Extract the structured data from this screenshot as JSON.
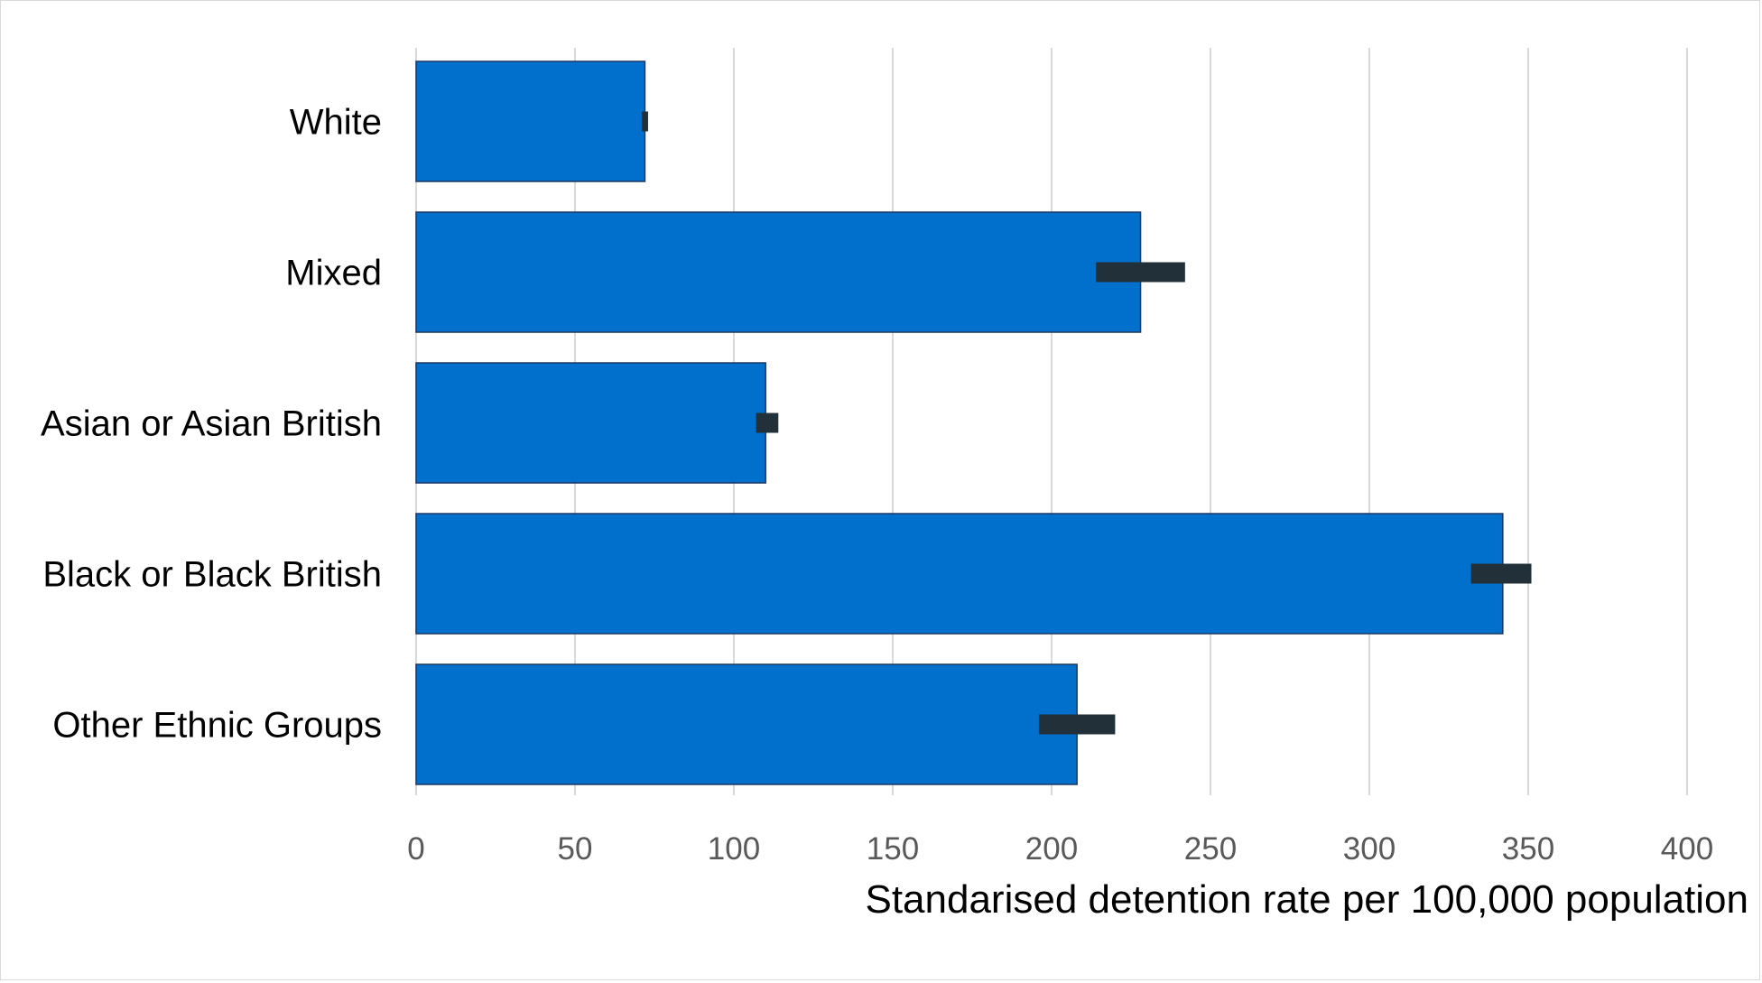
{
  "chart_data": {
    "type": "bar",
    "orientation": "horizontal",
    "title": "",
    "xlabel": "Standarised detention rate per 100,000 population",
    "ylabel": "",
    "categories": [
      "White",
      "Mixed",
      "Asian or Asian British",
      "Black or Black British",
      "Other Ethnic Groups"
    ],
    "values": [
      72,
      228,
      110,
      342,
      208
    ],
    "error_intervals": [
      [
        71,
        73
      ],
      [
        214,
        242
      ],
      [
        107,
        114
      ],
      [
        332,
        351
      ],
      [
        196,
        220
      ]
    ],
    "xlim": [
      0,
      400
    ],
    "xticks": [
      0,
      50,
      100,
      150,
      200,
      250,
      300,
      350,
      400
    ],
    "grid": "vertical",
    "legend": "none",
    "colors": {
      "bar": "#0070CC",
      "bar_edge": "#1f3864",
      "error_marker": "#22303a",
      "grid": "#d9d9d9",
      "tick_text": "#595959"
    }
  }
}
